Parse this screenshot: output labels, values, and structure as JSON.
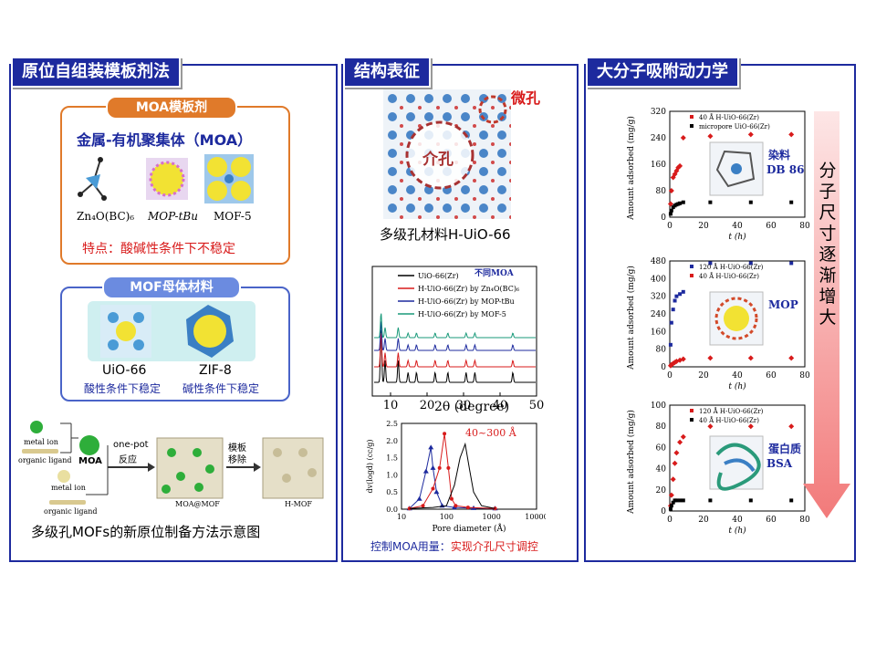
{
  "colors": {
    "panel_border": "#1d2a9e",
    "orange": "#e07a2a",
    "red": "#d81b1b",
    "blue": "#1d2a9e"
  },
  "panel1": {
    "title": "原位自组装模板剂法",
    "moa_box": {
      "label": "MOA模板剂",
      "heading": "金属-有机聚集体（MOA）",
      "items": [
        "Zn₄O(BC)₆",
        "MOP-tBu",
        "MOF-5"
      ],
      "note_prefix": "特点：",
      "note_body": "酸碱性条件下不稳定"
    },
    "mof_box": {
      "label": "MOF母体材料",
      "items": [
        {
          "name": "UiO-66",
          "desc": "酸性条件下稳定"
        },
        {
          "name": "ZIF-8",
          "desc": "碱性条件下稳定"
        }
      ]
    },
    "scheme": {
      "metal_ion": "metal ion",
      "organic_ligand": "organic ligand",
      "moa": "MOA",
      "metal_ion2": "metal ion",
      "organic_ligand2": "organic ligand",
      "one_pot_1": "one-pot",
      "one_pot_2": "反应",
      "remove_1": "模板",
      "remove_2": "移除",
      "moa_mof": "MOA@MOF",
      "h_mof": "H-MOF"
    },
    "caption": "多级孔MOFs的新原位制备方法示意图"
  },
  "panel2": {
    "title": "结构表征",
    "micro_label": "微孔",
    "meso_label": "介孔",
    "structure_caption": "多级孔材料H-UiO-66",
    "xrd": {
      "legend": [
        "UiO-66(Zr)",
        "H-UiO-66(Zr) by Zn₄O(BC)₆",
        "H-UiO-66(Zr) by MOP-tBu",
        "H-UiO-66(Zr) by MOF-5"
      ],
      "legend_colors": [
        "#000000",
        "#d81b1b",
        "#1d2a9e",
        "#1a9a7a"
      ],
      "note": "不同MOA",
      "xlabel": "2θ (degree)",
      "xticks": [
        "10",
        "20",
        "30",
        "40",
        "50"
      ]
    },
    "pore": {
      "annotation": "40~300 Å",
      "xlabel": "Pore diameter (Å)",
      "ylabel": "dv(logd) (cc/g)",
      "xticks": [
        "10",
        "100",
        "1000",
        "10000"
      ],
      "yticks": [
        "0.0",
        "0.5",
        "1.0",
        "1.5",
        "2.0",
        "2.5"
      ]
    },
    "bottom_note_blue": "控制MOA用量：",
    "bottom_note_red": "实现介孔尺寸调控"
  },
  "panel3": {
    "title": "大分子吸附动力学",
    "side_text": "分子尺寸逐渐增大",
    "ylabel": "Amount adsorbed (mg/g)",
    "xlabel": "t (h)",
    "charts": [
      {
        "legend": [
          "40 Å H-UiO-66(Zr)",
          "micropore UiO-66(Zr)"
        ],
        "tag_1": "染料",
        "tag_2": "DB 86",
        "yticks": [
          "0",
          "80",
          "160",
          "240",
          "320"
        ],
        "xticks": [
          "0",
          "20",
          "40",
          "60",
          "80"
        ]
      },
      {
        "legend": [
          "120 Å H-UiO-66(Zr)",
          "40 Å H-UiO-66(Zr)"
        ],
        "tag_1": "MOP",
        "tag_2": "",
        "yticks": [
          "0",
          "80",
          "160",
          "240",
          "320",
          "400",
          "480"
        ],
        "xticks": [
          "0",
          "20",
          "40",
          "60",
          "80"
        ]
      },
      {
        "legend": [
          "120 Å H-UiO-66(Zr)",
          "40 Å H-UiO-66(Zr)"
        ],
        "tag_1": "蛋白质",
        "tag_2": "BSA",
        "yticks": [
          "0",
          "20",
          "40",
          "60",
          "80",
          "100"
        ],
        "xticks": [
          "0",
          "20",
          "40",
          "60",
          "80"
        ]
      }
    ]
  },
  "chart_data": [
    {
      "type": "line",
      "title": "",
      "xlabel": "2θ (degree)",
      "xlim": [
        5,
        50
      ],
      "series": [
        {
          "name": "UiO-66(Zr)",
          "peaks": [
            7.4,
            8.5,
            12.1,
            14.8,
            17.1,
            22.2,
            25.7,
            30.7,
            33.1,
            43.5
          ]
        },
        {
          "name": "H-UiO-66(Zr) by Zn₄O(BC)₆",
          "peaks": [
            7.4,
            8.5,
            12.1,
            14.8,
            17.1,
            22.2,
            25.7,
            30.7,
            33.1,
            43.5
          ]
        },
        {
          "name": "H-UiO-66(Zr) by MOP-tBu",
          "peaks": [
            7.4,
            8.5,
            12.1,
            14.8,
            17.1,
            22.2,
            25.7,
            30.7,
            33.1,
            43.5
          ]
        },
        {
          "name": "H-UiO-66(Zr) by MOF-5",
          "peaks": [
            7.4,
            8.5,
            12.1,
            14.8,
            17.1,
            22.2,
            25.7,
            30.7,
            33.1,
            43.5
          ]
        }
      ]
    },
    {
      "type": "line",
      "xlabel": "Pore diameter (Å)",
      "ylabel": "dv(logd) (cc/g)",
      "xscale": "log",
      "xlim": [
        10,
        10000
      ],
      "ylim": [
        0,
        2.5
      ],
      "series": [
        {
          "color": "#1d2a9e",
          "x": [
            15,
            25,
            35,
            45,
            50,
            60,
            80,
            150,
            400,
            1200
          ],
          "y": [
            0.02,
            0.3,
            1.1,
            1.8,
            1.2,
            0.5,
            0.1,
            0.05,
            0.03,
            0.02
          ]
        },
        {
          "color": "#d81b1b",
          "x": [
            15,
            30,
            50,
            70,
            90,
            110,
            130,
            160,
            300,
            1200
          ],
          "y": [
            0.02,
            0.1,
            0.6,
            1.2,
            2.2,
            1.2,
            0.3,
            0.1,
            0.05,
            0.02
          ]
        },
        {
          "color": "#000000",
          "x": [
            15,
            50,
            100,
            150,
            200,
            260,
            320,
            400,
            600,
            1200
          ],
          "y": [
            0.02,
            0.05,
            0.1,
            0.7,
            1.5,
            1.9,
            1.2,
            0.5,
            0.1,
            0.02
          ]
        }
      ]
    },
    {
      "type": "scatter",
      "xlabel": "t (h)",
      "ylabel": "Amount adsorbed (mg/g)",
      "xlim": [
        0,
        80
      ],
      "ylim": [
        0,
        320
      ],
      "series": [
        {
          "name": "40 Å H-UiO-66(Zr)",
          "color": "#d81b1b",
          "x": [
            0.5,
            1,
            2,
            3,
            4,
            5,
            6,
            8,
            24,
            48,
            72
          ],
          "y": [
            40,
            80,
            120,
            130,
            140,
            150,
            155,
            240,
            245,
            250,
            250
          ]
        },
        {
          "name": "micropore UiO-66(Zr)",
          "color": "#000000",
          "x": [
            0.5,
            1,
            2,
            3,
            4,
            5,
            6,
            8,
            24,
            48,
            72
          ],
          "y": [
            10,
            20,
            30,
            35,
            38,
            40,
            42,
            45,
            45,
            45,
            45
          ]
        }
      ]
    },
    {
      "type": "scatter",
      "xlabel": "t (h)",
      "ylabel": "Amount adsorbed (mg/g)",
      "xlim": [
        0,
        80
      ],
      "ylim": [
        0,
        480
      ],
      "series": [
        {
          "name": "120 Å H-UiO-66(Zr)",
          "color": "#1d2a9e",
          "x": [
            0.5,
            1,
            2,
            3,
            4,
            6,
            8,
            24,
            48,
            72
          ],
          "y": [
            100,
            200,
            260,
            300,
            320,
            330,
            340,
            470,
            470,
            470
          ]
        },
        {
          "name": "40 Å H-UiO-66(Zr)",
          "color": "#d81b1b",
          "x": [
            0.5,
            1,
            2,
            3,
            4,
            6,
            8,
            24,
            48,
            72
          ],
          "y": [
            5,
            10,
            15,
            20,
            25,
            30,
            35,
            40,
            40,
            40
          ]
        }
      ]
    },
    {
      "type": "scatter",
      "xlabel": "t (h)",
      "ylabel": "Amount adsorbed (mg/g)",
      "xlim": [
        0,
        80
      ],
      "ylim": [
        0,
        100
      ],
      "series": [
        {
          "name": "120 Å H-UiO-66(Zr)",
          "color": "#d81b1b",
          "x": [
            0.5,
            1,
            2,
            3,
            4,
            6,
            8,
            24,
            48,
            72
          ],
          "y": [
            5,
            15,
            30,
            45,
            55,
            65,
            70,
            80,
            80,
            80
          ]
        },
        {
          "name": "40 Å H-UiO-66(Zr)",
          "color": "#000000",
          "x": [
            0.5,
            1,
            2,
            3,
            4,
            6,
            8,
            24,
            48,
            72
          ],
          "y": [
            2,
            5,
            8,
            10,
            10,
            10,
            10,
            10,
            10,
            10
          ]
        }
      ]
    }
  ]
}
